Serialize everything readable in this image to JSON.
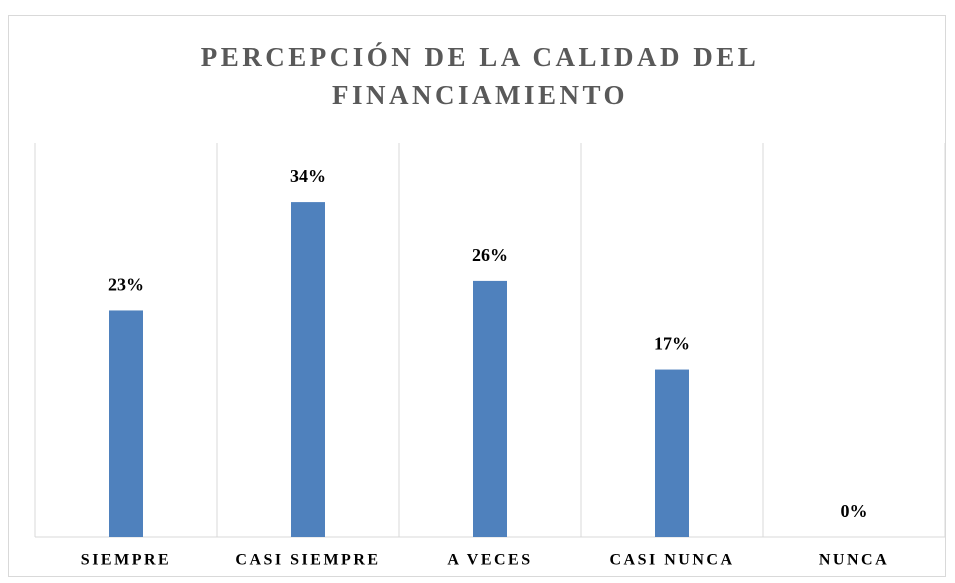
{
  "chart_data": {
    "type": "bar",
    "title": "PERCEPCIÓN DE LA CALIDAD DEL FINANCIAMIENTO",
    "categories": [
      "SIEMPRE",
      "CASI SIEMPRE",
      "A VECES",
      "CASI NUNCA",
      "NUNCA"
    ],
    "values": [
      23,
      34,
      26,
      17,
      0
    ],
    "value_labels": [
      "23%",
      "34%",
      "26%",
      "17%",
      "0%"
    ],
    "color": "#4f81bd",
    "ylim": [
      0,
      40
    ]
  }
}
